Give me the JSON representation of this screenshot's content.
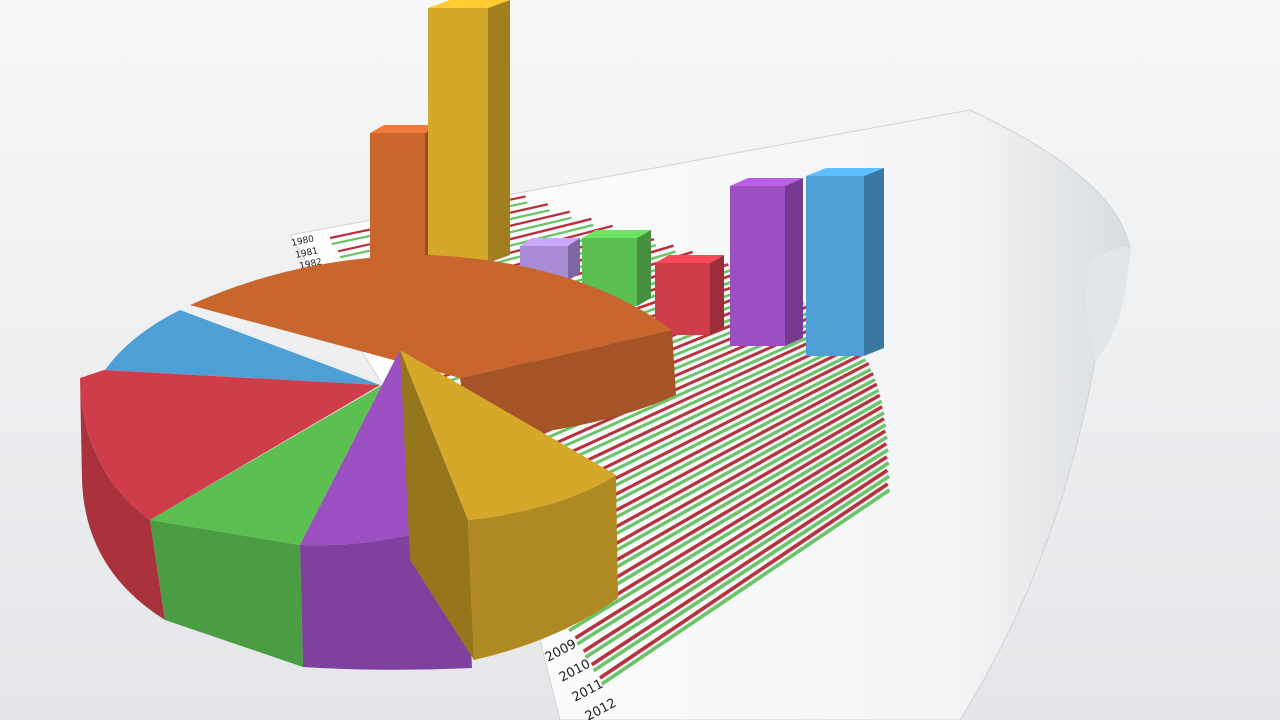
{
  "scene": {
    "year_labels_top": [
      "1980",
      "1981",
      "1982"
    ],
    "year_labels_bottom": [
      "2009",
      "2010",
      "2011",
      "2012"
    ],
    "colors": {
      "orange": "#c8662e",
      "yellow": "#d6a82a",
      "blue": "#4d9fd6",
      "red": "#cf3d4a",
      "green": "#5cbf52",
      "purple": "#9b4fc0",
      "lavender": "#a98bd6",
      "line_red": "#b8323e",
      "line_green": "#6cc46a"
    }
  }
}
